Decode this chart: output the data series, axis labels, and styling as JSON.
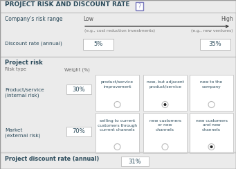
{
  "title": "PROJECT RISK AND DISCOUNT RATE",
  "bg_color": "#e8e6e3",
  "panel_bg": "#ebebeb",
  "box_bg": "#ffffff",
  "border_color": "#bbbbbb",
  "text_color": "#2a4a5a",
  "risk_range_label": "Company's risk range",
  "low_label": "Low",
  "high_label": "High",
  "eg_low": "(e.g., cost reduction investments)",
  "eg_high": "(e.g., new ventures)",
  "discount_label": "Discount rate (annual)",
  "discount_low": "5%",
  "discount_high": "35%",
  "project_risk_label": "Project risk",
  "risk_type_label": "Risk type",
  "weight_label": "Weight (%)",
  "product_label": "Product/service\n(internal risk)",
  "product_weight": "30%",
  "market_label": "Market\n(external risk)",
  "market_weight": "70%",
  "product_options": [
    "product/service\nimprovement",
    "new, but adjacent\nproduct/service",
    "new to the\ncompany"
  ],
  "market_options": [
    "selling to current\ncustomers through\ncurrent channels",
    "new customers\nor new\nchannels",
    "new customers\nand new\nchannels"
  ],
  "product_selected": 1,
  "market_selected": 2,
  "project_discount_label": "Project discount rate (annual)",
  "project_discount_value": "31%",
  "arrow_color": "#333333",
  "selected_dot_color": "#222222",
  "question_box_color": "#7777bb",
  "divider_color": "#cccccc",
  "header_divider": "#cccccc"
}
